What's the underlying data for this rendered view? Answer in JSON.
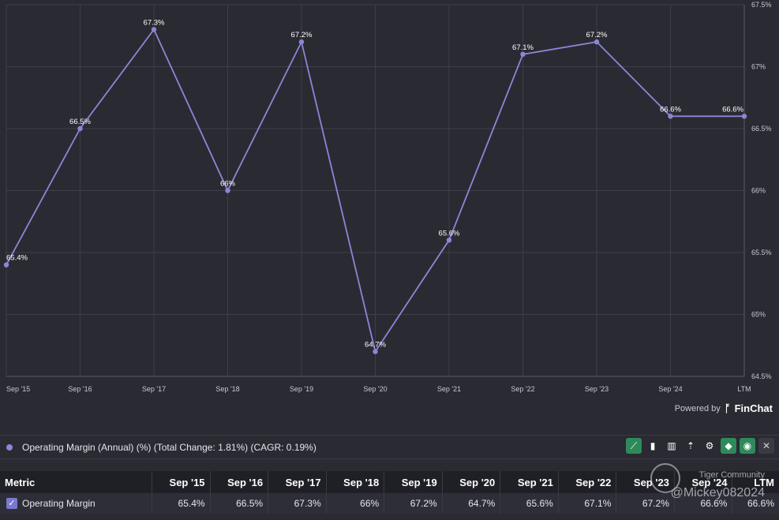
{
  "chart_data": {
    "type": "line",
    "categories": [
      "Sep '15",
      "Sep '16",
      "Sep '17",
      "Sep '18",
      "Sep '19",
      "Sep '20",
      "Sep '21",
      "Sep '22",
      "Sep '23",
      "Sep '24",
      "LTM"
    ],
    "series": [
      {
        "values": [
          65.4,
          66.5,
          67.3,
          66.0,
          67.2,
          64.7,
          65.6,
          67.1,
          67.2,
          66.6,
          66.6
        ],
        "labels": [
          "65.4%",
          "66.5%",
          "67.3%",
          "66%",
          "67.2%",
          "64.7%",
          "65.6%",
          "67.1%",
          "67.2%",
          "66.6%",
          "66.6%"
        ]
      }
    ],
    "ylim": [
      64.5,
      67.5
    ],
    "yticks": [
      64.5,
      65,
      65.5,
      66,
      66.5,
      67,
      67.5
    ],
    "ytick_labels": [
      "64.5%",
      "65%",
      "65.5%",
      "66%",
      "66.5%",
      "67%",
      "67.5%"
    ],
    "y_axis_side": "right",
    "grid": true,
    "title": "",
    "xlabel": "",
    "ylabel": "",
    "line_color": "#8a87d6"
  },
  "powered_by": {
    "label": "Powered by",
    "brand": "FinChat"
  },
  "legend": {
    "text": "Operating Margin (Annual) (%) (Total Change: 1.81%) (CAGR: 0.19%)"
  },
  "toolbar": {
    "icons": [
      "line-chart-icon",
      "bar-chart-icon",
      "grouped-bar-icon",
      "sort-icon",
      "gear-icon",
      "tag-icon",
      "eye-icon",
      "close-icon"
    ]
  },
  "table": {
    "header_first": "Metric",
    "columns": [
      "Sep '15",
      "Sep '16",
      "Sep '17",
      "Sep '18",
      "Sep '19",
      "Sep '20",
      "Sep '21",
      "Sep '22",
      "Sep '23",
      "Sep '24",
      "LTM"
    ],
    "rows": [
      {
        "metric": "Operating Margin",
        "values": [
          "65.4%",
          "66.5%",
          "67.3%",
          "66%",
          "67.2%",
          "64.7%",
          "65.6%",
          "67.1%",
          "67.2%",
          "66.6%",
          "66.6%"
        ]
      }
    ]
  },
  "watermark": {
    "line1": "Tiger Community",
    "line2": "@Mickey082024"
  }
}
